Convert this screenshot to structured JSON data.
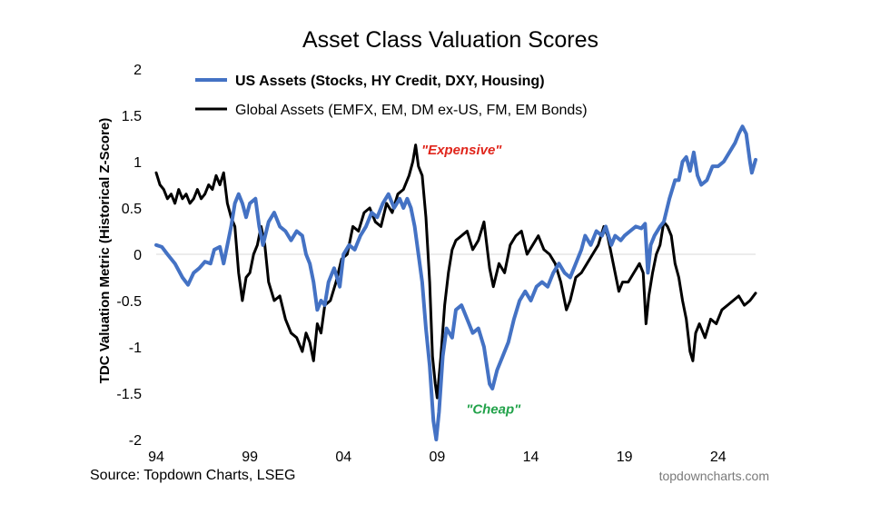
{
  "chart_data": {
    "type": "line",
    "title": "Asset Class Valuation Scores",
    "ylabel": "TDC Valuation Metric (Historical Z-Score)",
    "xlabel": "",
    "xlim": [
      1994,
      2026
    ],
    "ylim": [
      -2,
      2
    ],
    "x_ticks": [
      1994,
      1999,
      2004,
      2009,
      2014,
      2019,
      2024
    ],
    "x_tick_labels": [
      "94",
      "99",
      "04",
      "09",
      "14",
      "19",
      "24"
    ],
    "y_ticks": [
      2,
      1.5,
      1,
      0.5,
      0,
      -0.5,
      -1,
      -1.5,
      -2
    ],
    "y_tick_labels": [
      "2",
      "1.5",
      "1",
      "0.5",
      "0",
      "-0.5",
      "-1",
      "-1.5",
      "-2"
    ],
    "zero_line": true,
    "grid": false,
    "legend_position": "top-left",
    "series": [
      {
        "name": "US Assets (Stocks, HY Credit, DXY, Housing)",
        "color": "#4472C4",
        "points": [
          [
            1994.0,
            0.1
          ],
          [
            1994.3,
            0.08
          ],
          [
            1994.6,
            0.0
          ],
          [
            1995.0,
            -0.1
          ],
          [
            1995.4,
            -0.25
          ],
          [
            1995.7,
            -0.33
          ],
          [
            1996.0,
            -0.2
          ],
          [
            1996.3,
            -0.15
          ],
          [
            1996.6,
            -0.08
          ],
          [
            1996.9,
            -0.1
          ],
          [
            1997.1,
            0.05
          ],
          [
            1997.4,
            0.08
          ],
          [
            1997.6,
            -0.1
          ],
          [
            1997.8,
            0.1
          ],
          [
            1998.0,
            0.3
          ],
          [
            1998.2,
            0.55
          ],
          [
            1998.4,
            0.65
          ],
          [
            1998.6,
            0.55
          ],
          [
            1998.8,
            0.4
          ],
          [
            1999.0,
            0.55
          ],
          [
            1999.3,
            0.6
          ],
          [
            1999.5,
            0.3
          ],
          [
            1999.7,
            0.1
          ],
          [
            2000.0,
            0.35
          ],
          [
            2000.3,
            0.45
          ],
          [
            2000.6,
            0.3
          ],
          [
            2000.9,
            0.25
          ],
          [
            2001.2,
            0.15
          ],
          [
            2001.5,
            0.25
          ],
          [
            2001.8,
            0.2
          ],
          [
            2002.0,
            0.0
          ],
          [
            2002.2,
            -0.1
          ],
          [
            2002.4,
            -0.3
          ],
          [
            2002.6,
            -0.6
          ],
          [
            2002.8,
            -0.5
          ],
          [
            2003.0,
            -0.55
          ],
          [
            2003.2,
            -0.3
          ],
          [
            2003.5,
            -0.15
          ],
          [
            2003.8,
            -0.35
          ],
          [
            2004.0,
            0.0
          ],
          [
            2004.3,
            0.1
          ],
          [
            2004.6,
            0.05
          ],
          [
            2004.9,
            0.2
          ],
          [
            2005.2,
            0.3
          ],
          [
            2005.5,
            0.45
          ],
          [
            2005.8,
            0.4
          ],
          [
            2006.1,
            0.55
          ],
          [
            2006.4,
            0.65
          ],
          [
            2006.7,
            0.5
          ],
          [
            2007.0,
            0.6
          ],
          [
            2007.2,
            0.5
          ],
          [
            2007.4,
            0.6
          ],
          [
            2007.6,
            0.5
          ],
          [
            2007.8,
            0.3
          ],
          [
            2008.0,
            0.0
          ],
          [
            2008.2,
            -0.3
          ],
          [
            2008.4,
            -0.8
          ],
          [
            2008.6,
            -1.2
          ],
          [
            2008.8,
            -1.8
          ],
          [
            2008.95,
            -2.0
          ],
          [
            2009.1,
            -1.7
          ],
          [
            2009.3,
            -1.1
          ],
          [
            2009.5,
            -0.8
          ],
          [
            2009.8,
            -0.9
          ],
          [
            2010.0,
            -0.6
          ],
          [
            2010.3,
            -0.55
          ],
          [
            2010.6,
            -0.7
          ],
          [
            2010.9,
            -0.85
          ],
          [
            2011.2,
            -0.8
          ],
          [
            2011.5,
            -1.0
          ],
          [
            2011.8,
            -1.4
          ],
          [
            2011.95,
            -1.45
          ],
          [
            2012.2,
            -1.25
          ],
          [
            2012.5,
            -1.1
          ],
          [
            2012.8,
            -0.95
          ],
          [
            2013.1,
            -0.7
          ],
          [
            2013.4,
            -0.5
          ],
          [
            2013.7,
            -0.4
          ],
          [
            2014.0,
            -0.5
          ],
          [
            2014.3,
            -0.35
          ],
          [
            2014.6,
            -0.3
          ],
          [
            2014.9,
            -0.35
          ],
          [
            2015.2,
            -0.2
          ],
          [
            2015.5,
            -0.1
          ],
          [
            2015.8,
            -0.2
          ],
          [
            2016.1,
            -0.25
          ],
          [
            2016.4,
            -0.1
          ],
          [
            2016.7,
            0.05
          ],
          [
            2016.9,
            0.2
          ],
          [
            2017.2,
            0.1
          ],
          [
            2017.5,
            0.25
          ],
          [
            2017.8,
            0.2
          ],
          [
            2018.0,
            0.3
          ],
          [
            2018.3,
            0.1
          ],
          [
            2018.5,
            0.2
          ],
          [
            2018.8,
            0.15
          ],
          [
            2019.0,
            0.2
          ],
          [
            2019.3,
            0.25
          ],
          [
            2019.6,
            0.3
          ],
          [
            2019.9,
            0.28
          ],
          [
            2020.1,
            0.33
          ],
          [
            2020.25,
            -0.2
          ],
          [
            2020.4,
            0.1
          ],
          [
            2020.6,
            0.2
          ],
          [
            2020.9,
            0.3
          ],
          [
            2021.1,
            0.35
          ],
          [
            2021.4,
            0.6
          ],
          [
            2021.7,
            0.8
          ],
          [
            2021.9,
            0.8
          ],
          [
            2022.1,
            1.0
          ],
          [
            2022.3,
            1.05
          ],
          [
            2022.5,
            0.9
          ],
          [
            2022.7,
            1.1
          ],
          [
            2022.9,
            0.85
          ],
          [
            2023.1,
            0.75
          ],
          [
            2023.4,
            0.8
          ],
          [
            2023.7,
            0.95
          ],
          [
            2024.0,
            0.95
          ],
          [
            2024.3,
            1.0
          ],
          [
            2024.6,
            1.1
          ],
          [
            2024.9,
            1.2
          ],
          [
            2025.1,
            1.3
          ],
          [
            2025.3,
            1.38
          ],
          [
            2025.5,
            1.3
          ],
          [
            2025.7,
            1.0
          ],
          [
            2025.8,
            0.88
          ],
          [
            2026.0,
            1.02
          ]
        ]
      },
      {
        "name": "Global Assets (EMFX, EM, DM ex-US, FM, EM Bonds)",
        "color": "#000000",
        "points": [
          [
            1994.0,
            0.88
          ],
          [
            1994.2,
            0.75
          ],
          [
            1994.4,
            0.7
          ],
          [
            1994.6,
            0.6
          ],
          [
            1994.8,
            0.65
          ],
          [
            1995.0,
            0.55
          ],
          [
            1995.2,
            0.7
          ],
          [
            1995.4,
            0.6
          ],
          [
            1995.6,
            0.65
          ],
          [
            1995.8,
            0.55
          ],
          [
            1996.0,
            0.6
          ],
          [
            1996.2,
            0.7
          ],
          [
            1996.4,
            0.6
          ],
          [
            1996.6,
            0.65
          ],
          [
            1996.8,
            0.75
          ],
          [
            1997.0,
            0.7
          ],
          [
            1997.2,
            0.85
          ],
          [
            1997.4,
            0.75
          ],
          [
            1997.6,
            0.88
          ],
          [
            1997.8,
            0.55
          ],
          [
            1998.0,
            0.4
          ],
          [
            1998.2,
            0.3
          ],
          [
            1998.4,
            -0.2
          ],
          [
            1998.6,
            -0.5
          ],
          [
            1998.8,
            -0.25
          ],
          [
            1999.0,
            -0.2
          ],
          [
            1999.2,
            0.0
          ],
          [
            1999.4,
            0.1
          ],
          [
            1999.6,
            0.3
          ],
          [
            1999.8,
            0.1
          ],
          [
            2000.0,
            -0.3
          ],
          [
            2000.3,
            -0.5
          ],
          [
            2000.6,
            -0.45
          ],
          [
            2000.9,
            -0.7
          ],
          [
            2001.2,
            -0.85
          ],
          [
            2001.5,
            -0.9
          ],
          [
            2001.8,
            -1.05
          ],
          [
            2002.0,
            -0.85
          ],
          [
            2002.2,
            -0.95
          ],
          [
            2002.4,
            -1.15
          ],
          [
            2002.6,
            -0.75
          ],
          [
            2002.8,
            -0.85
          ],
          [
            2003.0,
            -0.55
          ],
          [
            2003.3,
            -0.5
          ],
          [
            2003.6,
            -0.3
          ],
          [
            2003.9,
            -0.05
          ],
          [
            2004.2,
            0.0
          ],
          [
            2004.5,
            0.3
          ],
          [
            2004.8,
            0.25
          ],
          [
            2005.1,
            0.45
          ],
          [
            2005.4,
            0.5
          ],
          [
            2005.7,
            0.35
          ],
          [
            2006.0,
            0.3
          ],
          [
            2006.3,
            0.55
          ],
          [
            2006.6,
            0.45
          ],
          [
            2006.9,
            0.65
          ],
          [
            2007.2,
            0.7
          ],
          [
            2007.5,
            0.85
          ],
          [
            2007.7,
            1.0
          ],
          [
            2007.85,
            1.18
          ],
          [
            2008.0,
            0.95
          ],
          [
            2008.2,
            0.85
          ],
          [
            2008.4,
            0.4
          ],
          [
            2008.6,
            -0.3
          ],
          [
            2008.75,
            -1.1
          ],
          [
            2008.9,
            -1.4
          ],
          [
            2009.0,
            -1.55
          ],
          [
            2009.2,
            -1.1
          ],
          [
            2009.4,
            -0.55
          ],
          [
            2009.6,
            -0.2
          ],
          [
            2009.8,
            0.05
          ],
          [
            2010.0,
            0.15
          ],
          [
            2010.3,
            0.2
          ],
          [
            2010.6,
            0.25
          ],
          [
            2010.9,
            0.05
          ],
          [
            2011.2,
            0.15
          ],
          [
            2011.5,
            0.35
          ],
          [
            2011.8,
            -0.15
          ],
          [
            2012.0,
            -0.35
          ],
          [
            2012.3,
            -0.1
          ],
          [
            2012.6,
            -0.2
          ],
          [
            2012.9,
            0.1
          ],
          [
            2013.2,
            0.2
          ],
          [
            2013.5,
            0.25
          ],
          [
            2013.8,
            0.0
          ],
          [
            2014.1,
            0.1
          ],
          [
            2014.4,
            0.2
          ],
          [
            2014.7,
            0.05
          ],
          [
            2015.0,
            0.0
          ],
          [
            2015.3,
            -0.1
          ],
          [
            2015.6,
            -0.3
          ],
          [
            2015.9,
            -0.6
          ],
          [
            2016.1,
            -0.5
          ],
          [
            2016.4,
            -0.25
          ],
          [
            2016.7,
            -0.2
          ],
          [
            2017.0,
            -0.1
          ],
          [
            2017.3,
            0.0
          ],
          [
            2017.6,
            0.1
          ],
          [
            2017.9,
            0.3
          ],
          [
            2018.1,
            0.2
          ],
          [
            2018.4,
            -0.1
          ],
          [
            2018.7,
            -0.4
          ],
          [
            2018.9,
            -0.3
          ],
          [
            2019.2,
            -0.3
          ],
          [
            2019.5,
            -0.2
          ],
          [
            2019.8,
            -0.1
          ],
          [
            2020.0,
            -0.2
          ],
          [
            2020.15,
            -0.75
          ],
          [
            2020.3,
            -0.45
          ],
          [
            2020.5,
            -0.2
          ],
          [
            2020.7,
            0.0
          ],
          [
            2020.9,
            0.1
          ],
          [
            2021.1,
            0.35
          ],
          [
            2021.3,
            0.3
          ],
          [
            2021.5,
            0.2
          ],
          [
            2021.7,
            -0.1
          ],
          [
            2021.9,
            -0.25
          ],
          [
            2022.1,
            -0.5
          ],
          [
            2022.3,
            -0.7
          ],
          [
            2022.5,
            -1.05
          ],
          [
            2022.65,
            -1.15
          ],
          [
            2022.8,
            -0.85
          ],
          [
            2023.0,
            -0.75
          ],
          [
            2023.3,
            -0.9
          ],
          [
            2023.6,
            -0.7
          ],
          [
            2023.9,
            -0.75
          ],
          [
            2024.2,
            -0.6
          ],
          [
            2024.5,
            -0.55
          ],
          [
            2024.8,
            -0.5
          ],
          [
            2025.1,
            -0.45
          ],
          [
            2025.4,
            -0.55
          ],
          [
            2025.7,
            -0.5
          ],
          [
            2026.0,
            -0.42
          ]
        ]
      }
    ],
    "annotations": [
      {
        "text": "\"Expensive\"",
        "color": "#E0251B",
        "x": 2010.3,
        "y": 1.08
      },
      {
        "text": "\"Cheap\"",
        "color": "#22A24A",
        "x": 2012.0,
        "y": -1.72
      }
    ],
    "source": "Source: Topdown Charts, LSEG",
    "watermark": "topdowncharts.com"
  }
}
